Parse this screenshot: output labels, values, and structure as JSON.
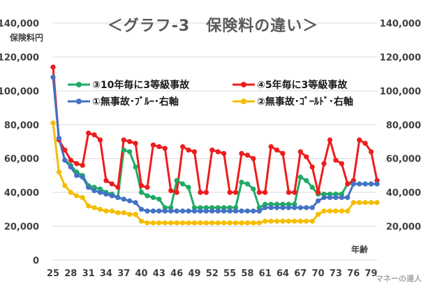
{
  "chart_data": {
    "type": "line",
    "title": "＜グラフ-3　保険料の違い＞",
    "ylabel": "保険料円",
    "xlabel": "年齢",
    "ylim": [
      0,
      140000
    ],
    "y_ticks": [
      "0",
      "20,000",
      "40,000",
      "60,000",
      "80,000",
      "100,000",
      "120,000",
      "140,000"
    ],
    "y_tick_values": [
      0,
      20000,
      40000,
      60000,
      80000,
      100000,
      120000,
      140000
    ],
    "y2_ticks": [
      "20,000",
      "40,000",
      "60,000",
      "80,000",
      "100,000",
      "120,000",
      "140,000"
    ],
    "y2_tick_values": [
      20000,
      40000,
      60000,
      80000,
      100000,
      120000,
      140000
    ],
    "x_range": [
      25,
      80
    ],
    "x_ticks": [
      "25",
      "28",
      "31",
      "34",
      "37",
      "40",
      "43",
      "46",
      "49",
      "52",
      "55",
      "58",
      "61",
      "64",
      "67",
      "70",
      "73",
      "76",
      "79"
    ],
    "x_tick_values": [
      25,
      28,
      31,
      34,
      37,
      40,
      43,
      46,
      49,
      52,
      55,
      58,
      61,
      64,
      67,
      70,
      73,
      76,
      79
    ],
    "grid": "horizontal",
    "legend": "inside-center",
    "series": [
      {
        "name": "③10年毎に3等級事故",
        "color": "#1faa64",
        "x": [
          25,
          26,
          27,
          28,
          29,
          30,
          31,
          32,
          33,
          34,
          35,
          36,
          37,
          38,
          39,
          40,
          41,
          42,
          43,
          44,
          45,
          46,
          47,
          48,
          49,
          50,
          51,
          52,
          53,
          54,
          55,
          56,
          57,
          58,
          59,
          60,
          61,
          62,
          63,
          64,
          65,
          66,
          67,
          68,
          69,
          70,
          71,
          72,
          73,
          74,
          75,
          76,
          77,
          78,
          79,
          80
        ],
        "values": [
          108000,
          72000,
          59000,
          56000,
          52000,
          50000,
          44000,
          43000,
          42000,
          40000,
          39000,
          37000,
          65000,
          64000,
          55000,
          40000,
          38000,
          37000,
          36000,
          31000,
          31000,
          47000,
          45000,
          43000,
          31000,
          31000,
          31000,
          31000,
          31000,
          31000,
          31000,
          31000,
          46000,
          45000,
          42000,
          31000,
          33000,
          33000,
          33000,
          33000,
          33000,
          33000,
          49000,
          47000,
          43000,
          39000,
          39000,
          39000,
          39000,
          39000,
          45000,
          45000,
          45000,
          45000,
          45000,
          45000
        ]
      },
      {
        "name": "④5年毎に3等級事故",
        "color": "#ee1c1c",
        "x": [
          25,
          26,
          27,
          28,
          29,
          30,
          31,
          32,
          33,
          34,
          35,
          36,
          37,
          38,
          39,
          40,
          41,
          42,
          43,
          44,
          45,
          46,
          47,
          48,
          49,
          50,
          51,
          52,
          53,
          54,
          55,
          56,
          57,
          58,
          59,
          60,
          61,
          62,
          63,
          64,
          65,
          66,
          67,
          68,
          69,
          70,
          71,
          72,
          73,
          74,
          75,
          76,
          77,
          78,
          79,
          80
        ],
        "values": [
          114000,
          71000,
          65000,
          59000,
          57000,
          56000,
          75000,
          74000,
          71000,
          47000,
          45000,
          43000,
          71000,
          70000,
          69000,
          44000,
          43000,
          68000,
          67000,
          66000,
          41000,
          40000,
          67000,
          65000,
          64000,
          40000,
          40000,
          65000,
          64000,
          63000,
          40000,
          40000,
          63000,
          62000,
          60000,
          40000,
          40000,
          67000,
          65000,
          63000,
          40000,
          40000,
          64000,
          61000,
          55000,
          40000,
          57000,
          71000,
          59000,
          57000,
          45000,
          47000,
          71000,
          69000,
          64000,
          47000
        ]
      },
      {
        "name": "①無事故･ﾌﾞﾙｰ･右軸",
        "color": "#4472c4",
        "x": [
          25,
          26,
          27,
          28,
          29,
          30,
          31,
          32,
          33,
          34,
          35,
          36,
          37,
          38,
          39,
          40,
          41,
          42,
          43,
          44,
          45,
          46,
          47,
          48,
          49,
          50,
          51,
          52,
          53,
          54,
          55,
          56,
          57,
          58,
          59,
          60,
          61,
          62,
          63,
          64,
          65,
          66,
          67,
          68,
          69,
          70,
          71,
          72,
          73,
          74,
          75,
          76,
          77,
          78,
          79,
          80
        ],
        "values": [
          108000,
          72000,
          59000,
          55000,
          50000,
          49000,
          43000,
          41000,
          40000,
          39000,
          38000,
          37000,
          36000,
          35000,
          34000,
          30000,
          29000,
          29000,
          29000,
          29000,
          29000,
          29000,
          29000,
          29000,
          29000,
          29000,
          29000,
          29000,
          29000,
          29000,
          29000,
          29000,
          29000,
          29000,
          29000,
          29000,
          31000,
          31000,
          31000,
          31000,
          31000,
          31000,
          31000,
          31000,
          31000,
          35000,
          37000,
          37000,
          37000,
          37000,
          37000,
          45000,
          45000,
          45000,
          45000,
          45000
        ]
      },
      {
        "name": "②無事故･ｺﾞｰﾙﾄﾞ･右軸",
        "color": "#f5bd02",
        "x": [
          25,
          26,
          27,
          28,
          29,
          30,
          31,
          32,
          33,
          34,
          35,
          36,
          37,
          38,
          39,
          40,
          41,
          42,
          43,
          44,
          45,
          46,
          47,
          48,
          49,
          50,
          51,
          52,
          53,
          54,
          55,
          56,
          57,
          58,
          59,
          60,
          61,
          62,
          63,
          64,
          65,
          66,
          67,
          68,
          69,
          70,
          71,
          72,
          73,
          74,
          75,
          76,
          77,
          78,
          79,
          80
        ],
        "values": [
          81000,
          52000,
          44000,
          40000,
          38000,
          37000,
          32000,
          31000,
          30000,
          29000,
          29000,
          28000,
          28000,
          27000,
          27000,
          23000,
          22000,
          22000,
          22000,
          22000,
          22000,
          22000,
          22000,
          22000,
          22000,
          22000,
          22000,
          22000,
          22000,
          22000,
          22000,
          22000,
          22000,
          22000,
          22000,
          22000,
          23000,
          23000,
          23000,
          23000,
          23000,
          23000,
          23000,
          23000,
          23000,
          27000,
          29000,
          29000,
          29000,
          29000,
          29000,
          34000,
          34000,
          34000,
          34000,
          34000
        ]
      }
    ]
  },
  "watermark": "マネーの達人"
}
